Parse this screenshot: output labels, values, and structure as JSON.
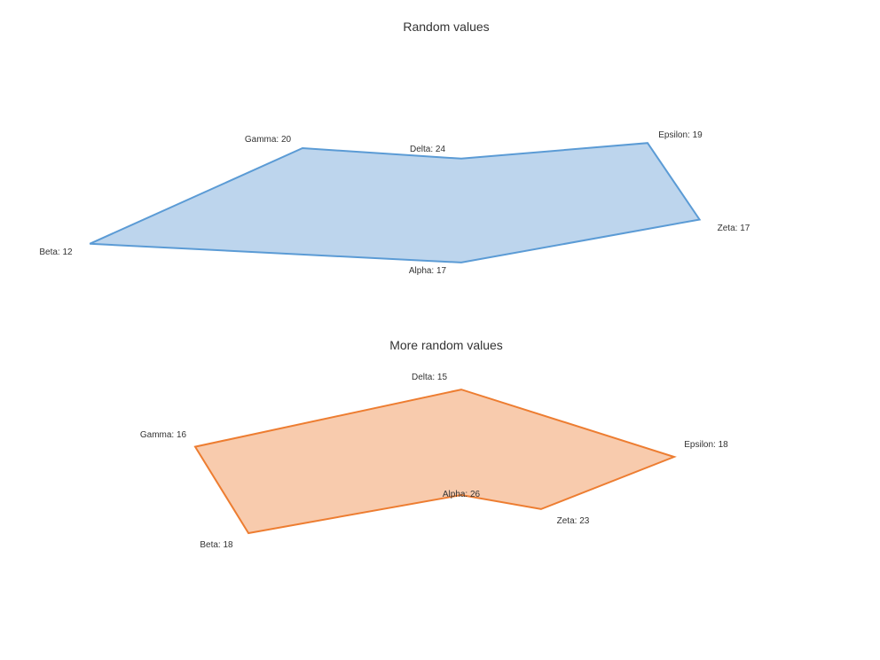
{
  "chart_data": [
    {
      "type": "radar",
      "title": "Random values",
      "categories": [
        "Alpha",
        "Beta",
        "Gamma",
        "Delta",
        "Epsilon",
        "Zeta"
      ],
      "series": [
        {
          "values": [
            17,
            12,
            20,
            24,
            19,
            17
          ]
        }
      ],
      "labels": [
        "Alpha: 17",
        "Beta: 12",
        "Gamma: 20",
        "Delta: 24",
        "Epsilon: 19",
        "Zeta: 17"
      ],
      "color": "#5b9bd5",
      "fill": "#bdd5ed"
    },
    {
      "type": "radar",
      "title": "More random values",
      "categories": [
        "Alpha",
        "Beta",
        "Gamma",
        "Delta",
        "Epsilon",
        "Zeta"
      ],
      "series": [
        {
          "values": [
            26,
            18,
            16,
            15,
            18,
            23
          ]
        }
      ],
      "labels": [
        "Alpha: 26",
        "Beta: 18",
        "Gamma: 16",
        "Delta: 15",
        "Epsilon: 18",
        "Zeta: 23"
      ],
      "color": "#ed7d31",
      "fill": "#f8cbad"
    }
  ]
}
